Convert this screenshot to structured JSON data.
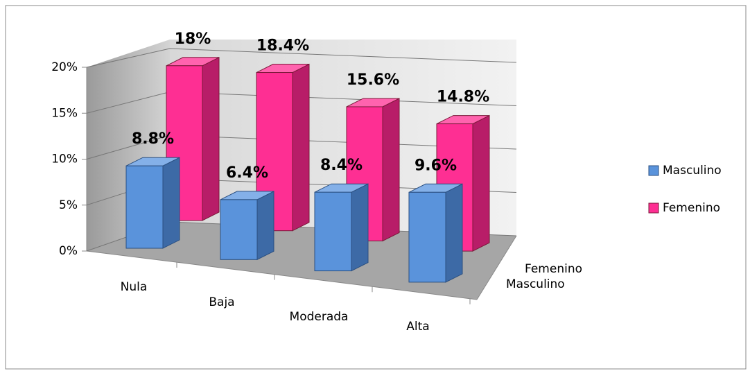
{
  "chart_data": {
    "type": "bar3d",
    "categories": [
      "Nula",
      "Baja",
      "Moderada",
      "Alta"
    ],
    "series": [
      {
        "name": "Masculino",
        "color": "#5a93db",
        "values": [
          8.8,
          6.4,
          8.4,
          9.6
        ],
        "value_labels": [
          "8.8%",
          "6.4%",
          "8.4%",
          "9.6%"
        ]
      },
      {
        "name": "Femenino",
        "color": "#fe2f93",
        "values": [
          18,
          18.4,
          15.6,
          14.8
        ],
        "value_labels": [
          "18%",
          "18.4%",
          "15.6%",
          "14.8%"
        ]
      }
    ],
    "ylim": [
      0,
      20
    ],
    "yticks": [
      {
        "value": 0,
        "label": "0%"
      },
      {
        "value": 5,
        "label": "5%"
      },
      {
        "value": 10,
        "label": "10%"
      },
      {
        "value": 15,
        "label": "15%"
      },
      {
        "value": 20,
        "label": "20%"
      }
    ],
    "grid": true,
    "legend": "right"
  }
}
